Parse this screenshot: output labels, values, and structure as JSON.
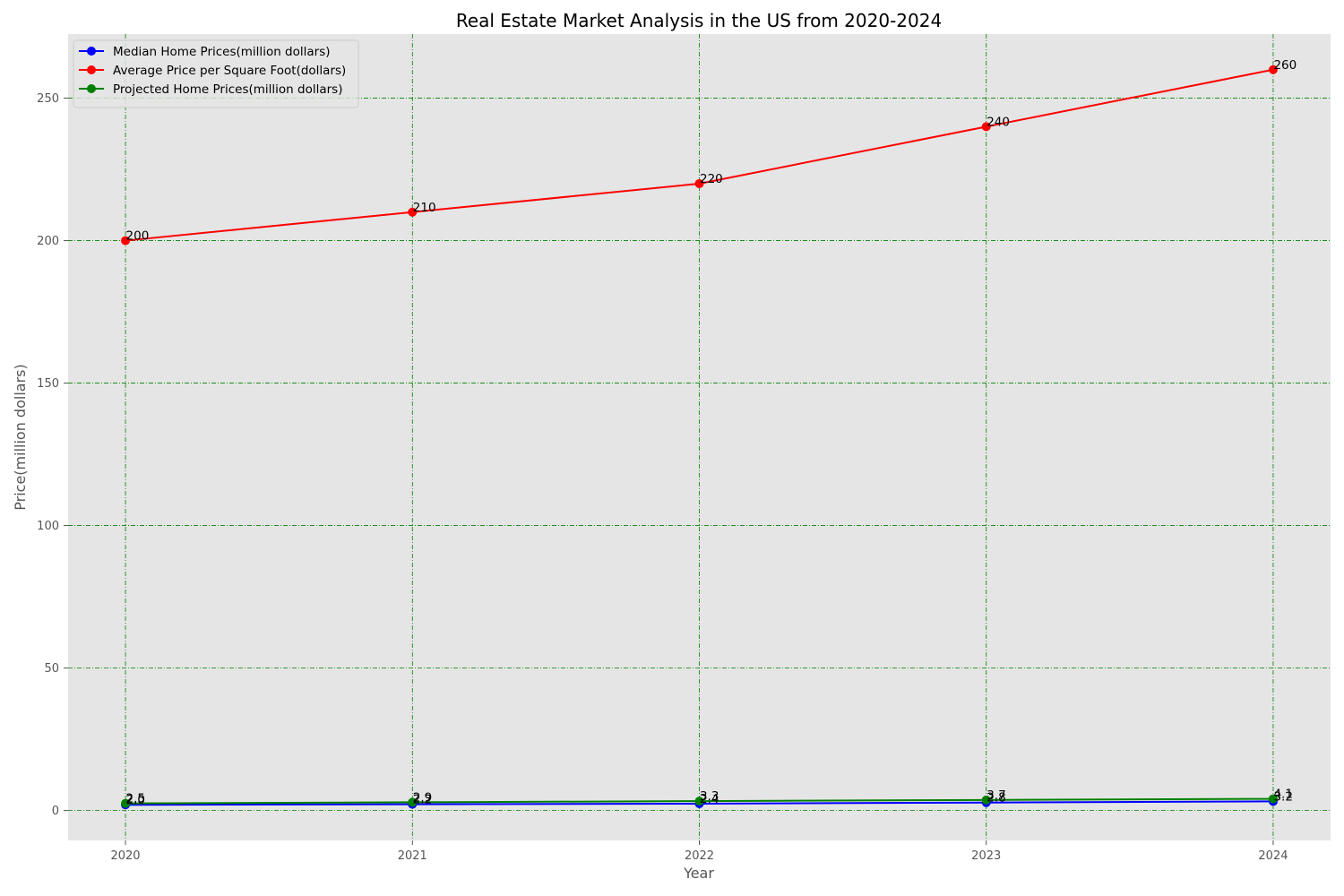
{
  "chart_data": {
    "type": "line",
    "title": "Real Estate Market Analysis in the US from 2020-2024",
    "xlabel": "Year",
    "ylabel": "Price(million dollars)",
    "x": [
      2020,
      2021,
      2022,
      2023,
      2024
    ],
    "x_tick_labels": [
      "2020",
      "2021",
      "2022",
      "2023",
      "2024"
    ],
    "xlim": [
      2019.8,
      2024.2
    ],
    "ylim": [
      -10.5,
      272.5
    ],
    "y_ticks": [
      0,
      50,
      100,
      150,
      200,
      250
    ],
    "y_tick_labels": [
      "0",
      "50",
      "100",
      "150",
      "200",
      "250"
    ],
    "grid": true,
    "grid_color": "#008000",
    "plot_background": "#e5e5e5",
    "legend_position": "top-left",
    "series": [
      {
        "name": "Median Home Prices(million dollars)",
        "color": "#0000ff",
        "values": [
          2.0,
          2.2,
          2.4,
          2.8,
          3.2
        ],
        "labels": [
          "2.0",
          "2.2",
          "2.4",
          "2.8",
          "3.2"
        ]
      },
      {
        "name": "Average Price per Square Foot(dollars)",
        "color": "#ff0000",
        "values": [
          200,
          210,
          220,
          240,
          260
        ],
        "labels": [
          "200",
          "210",
          "220",
          "240",
          "260"
        ]
      },
      {
        "name": "Projected Home Prices(million dollars)",
        "color": "#008000",
        "values": [
          2.5,
          2.9,
          3.3,
          3.7,
          4.1
        ],
        "labels": [
          "2.5",
          "2.9",
          "3.3",
          "3.7",
          "4.1"
        ]
      }
    ]
  }
}
